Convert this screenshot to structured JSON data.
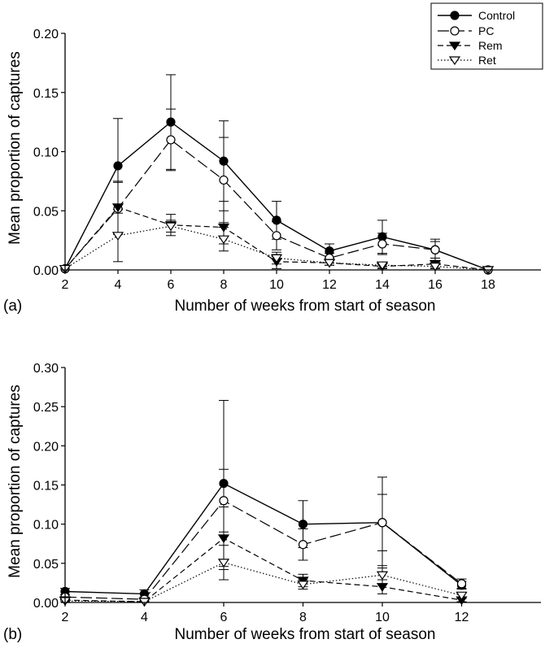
{
  "chart_data": [
    {
      "type": "line",
      "panel_label": "(a)",
      "xlabel": "Number of weeks from start of season",
      "ylabel": "Mean proportion of captures",
      "xlim": [
        2,
        20
      ],
      "ylim": [
        0,
        0.2
      ],
      "x_ticks": [
        2,
        4,
        6,
        8,
        10,
        12,
        14,
        16,
        18
      ],
      "y_ticks": [
        "0.00",
        "0.05",
        "0.10",
        "0.15",
        "0.20"
      ],
      "grid": false,
      "legend": "top-right",
      "series": [
        {
          "name": "Control",
          "marker": "filled-circle",
          "line": "solid",
          "x": [
            2,
            4,
            6,
            8,
            10,
            12,
            14,
            16,
            18
          ],
          "values": [
            0.001,
            0.088,
            0.125,
            0.092,
            0.042,
            0.016,
            0.028,
            0.017,
            0.0
          ],
          "err": [
            0.0,
            0.04,
            0.04,
            0.034,
            0.016,
            0.006,
            0.014,
            0.009,
            0.0
          ]
        },
        {
          "name": "PC",
          "marker": "open-circle",
          "line": "long-dash",
          "x": [
            2,
            4,
            6,
            8,
            10,
            12,
            14,
            16,
            18
          ],
          "values": [
            0.001,
            0.052,
            0.11,
            0.076,
            0.029,
            0.01,
            0.022,
            0.017,
            0.0
          ],
          "err": [
            0.0,
            0.022,
            0.026,
            0.036,
            0.012,
            0.004,
            0.009,
            0.007,
            0.0
          ]
        },
        {
          "name": "Rem",
          "marker": "filled-triangle-down",
          "line": "dash",
          "x": [
            2,
            4,
            6,
            8,
            10,
            12,
            14,
            16,
            18
          ],
          "values": [
            0.001,
            0.053,
            0.038,
            0.036,
            0.007,
            0.006,
            0.003,
            0.005,
            0.0
          ],
          "err": [
            0.0,
            0.022,
            0.009,
            0.014,
            0.006,
            0.002,
            0.002,
            0.003,
            0.0
          ]
        },
        {
          "name": "Ret",
          "marker": "open-triangle-down",
          "line": "dotted",
          "x": [
            2,
            4,
            6,
            8,
            10,
            12,
            14,
            16,
            18
          ],
          "values": [
            0.001,
            0.029,
            0.037,
            0.026,
            0.01,
            0.006,
            0.004,
            0.003,
            0.0
          ],
          "err": [
            0.0,
            0.022,
            0.005,
            0.01,
            0.005,
            0.002,
            0.002,
            0.002,
            0.0
          ]
        }
      ]
    },
    {
      "type": "line",
      "panel_label": "(b)",
      "xlabel": "Number of weeks from start of season",
      "ylabel": "Mean proportion of captures",
      "xlim": [
        2,
        14
      ],
      "ylim": [
        0,
        0.3
      ],
      "x_ticks": [
        2,
        4,
        6,
        8,
        10,
        12
      ],
      "y_ticks": [
        "0.00",
        "0.05",
        "0.10",
        "0.15",
        "0.20",
        "0.25",
        "0.30"
      ],
      "grid": false,
      "series": [
        {
          "name": "Control",
          "marker": "filled-circle",
          "line": "solid",
          "x": [
            2,
            4,
            6,
            8,
            10,
            12
          ],
          "values": [
            0.014,
            0.011,
            0.152,
            0.1,
            0.102,
            0.022
          ],
          "err": [
            0.004,
            0.005,
            0.106,
            0.03,
            0.058,
            0.005
          ]
        },
        {
          "name": "PC",
          "marker": "open-circle",
          "line": "long-dash",
          "x": [
            2,
            4,
            6,
            8,
            10,
            12
          ],
          "values": [
            0.007,
            0.004,
            0.13,
            0.074,
            0.102,
            0.024
          ],
          "err": [
            0.003,
            0.003,
            0.04,
            0.02,
            0.036,
            0.006
          ]
        },
        {
          "name": "Rem",
          "marker": "filled-triangle-down",
          "line": "dash",
          "x": [
            2,
            4,
            6,
            8,
            10,
            12
          ],
          "values": [
            0.003,
            0.001,
            0.082,
            0.028,
            0.02,
            0.003
          ],
          "err": [
            0.002,
            0.001,
            0.04,
            0.008,
            0.009,
            0.002
          ]
        },
        {
          "name": "Ret",
          "marker": "open-triangle-down",
          "line": "dotted",
          "x": [
            2,
            4,
            6,
            8,
            10,
            12
          ],
          "values": [
            0.002,
            0.001,
            0.051,
            0.023,
            0.035,
            0.009
          ],
          "err": [
            0.001,
            0.001,
            0.022,
            0.006,
            0.012,
            0.003
          ]
        }
      ]
    }
  ]
}
